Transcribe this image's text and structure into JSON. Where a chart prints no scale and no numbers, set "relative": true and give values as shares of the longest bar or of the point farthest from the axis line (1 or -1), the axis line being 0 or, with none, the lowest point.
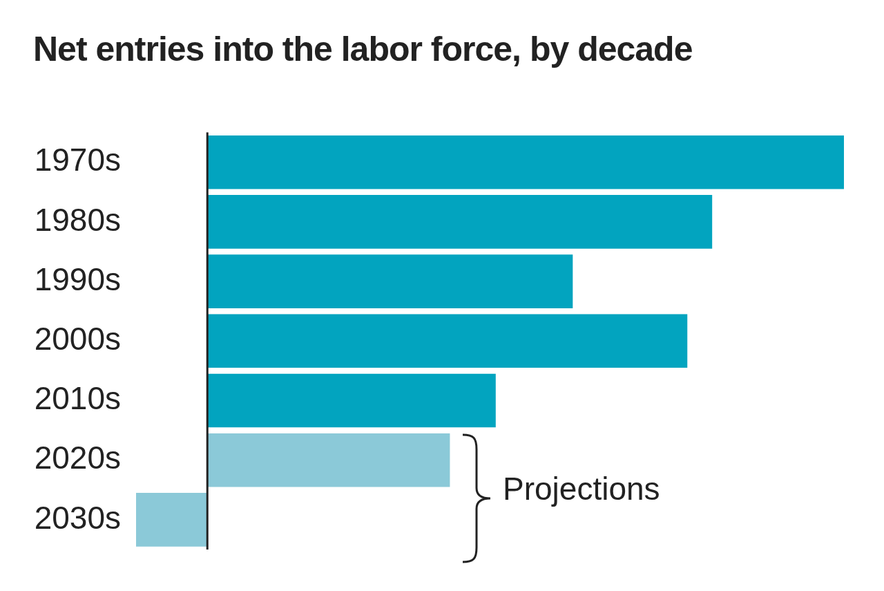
{
  "chart_data": {
    "type": "bar",
    "orientation": "horizontal",
    "relative": true,
    "title": "Net entries into the labor force, by decade",
    "categories": [
      "1970s",
      "1980s",
      "1990s",
      "2000s",
      "2010s",
      "2020s",
      "2030s"
    ],
    "values": [
      1,
      0.793,
      0.574,
      0.754,
      0.453,
      0.381,
      -0.112
    ],
    "colors": [
      "#02a4bf",
      "#02a4bf",
      "#02a4bf",
      "#02a4bf",
      "#02a4bf",
      "#8bc9d8",
      "#8bc9d8"
    ],
    "annotations": [
      "Projections"
    ]
  }
}
